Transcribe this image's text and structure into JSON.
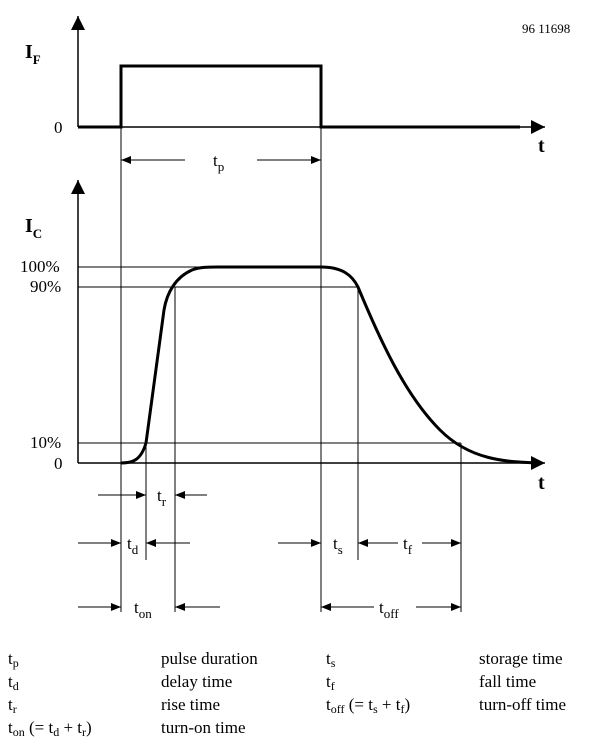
{
  "document_number": "96 11698",
  "top_axis": {
    "y_label_main": "I",
    "y_label_sub": "F",
    "zero_label": "0",
    "x_label": "t"
  },
  "bottom_axis": {
    "y_label_main": "I",
    "y_label_sub": "C",
    "zero_label": "0",
    "x_label": "t",
    "level_100": "100%",
    "level_90": "90%",
    "level_10": "10%"
  },
  "interval_labels": {
    "tp": {
      "main": "t",
      "sub": "p"
    },
    "tr": {
      "main": "t",
      "sub": "r"
    },
    "td": {
      "main": "t",
      "sub": "d"
    },
    "ts": {
      "main": "t",
      "sub": "s"
    },
    "tf": {
      "main": "t",
      "sub": "f"
    },
    "ton": {
      "main": "t",
      "sub": "on"
    },
    "toff": {
      "main": "t",
      "sub": "off"
    }
  },
  "legend": [
    {
      "sym": "t",
      "sub": "p",
      "rest": "",
      "desc": "pulse duration"
    },
    {
      "sym": "t",
      "sub": "d",
      "rest": "",
      "desc": "delay time"
    },
    {
      "sym": "t",
      "sub": "r",
      "rest": "",
      "desc": "rise time"
    },
    {
      "sym": "t",
      "sub": "on",
      "rest": " (= t",
      "rest_sub1": "d",
      "rest_mid": " + t",
      "rest_sub2": "r",
      "rest_end": ")",
      "desc": "turn-on time"
    },
    {
      "sym": "t",
      "sub": "s",
      "rest": "",
      "desc": "storage time"
    },
    {
      "sym": "t",
      "sub": "f",
      "rest": "",
      "desc": "fall time"
    },
    {
      "sym": "t",
      "sub": "off",
      "rest": " (= t",
      "rest_sub1": "s",
      "rest_mid": " + t",
      "rest_sub2": "f",
      "rest_end": ")",
      "desc": "turn-off time"
    }
  ]
}
